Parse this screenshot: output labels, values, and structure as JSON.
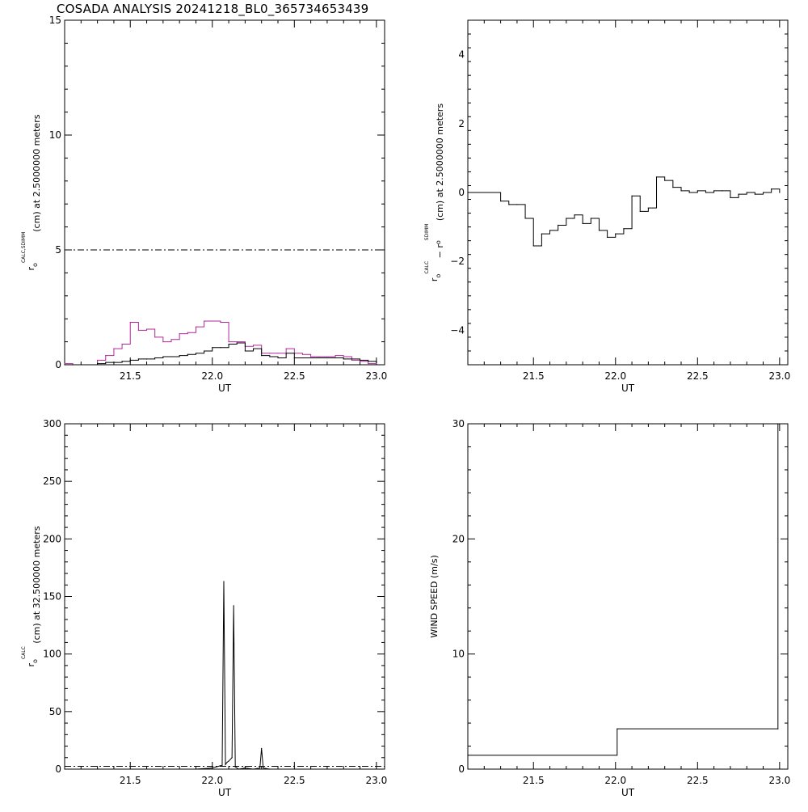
{
  "title": "COSADA ANALYSIS 20241218_BL0_365734653439",
  "colors": {
    "axis": "#000000",
    "series_black": "#000000",
    "series_magenta": "#b0279a"
  },
  "chart_data": [
    {
      "id": "top-left",
      "type": "line",
      "step": true,
      "xlabel": "UT",
      "ylabel_parts": {
        "pre": "r",
        "sub": "o",
        "sup": "CALC,SDIMM",
        "post": "(cm)  at  2.5000000 meters"
      },
      "xlim": [
        21.1,
        23.05
      ],
      "ylim": [
        0,
        15
      ],
      "xticks": [
        21.5,
        22.0,
        22.5,
        23.0
      ],
      "xtick_labels": [
        "21.5",
        "22.0",
        "22.5",
        "23.0"
      ],
      "yticks": [
        0,
        5,
        10,
        15
      ],
      "ytick_labels": [
        "0",
        "5",
        "10",
        "15"
      ],
      "reference_line": {
        "y": 5.0,
        "style": "dash-dot"
      },
      "series": [
        {
          "color": "#b0279a",
          "x": [
            21.1,
            21.15,
            21.3,
            21.35,
            21.4,
            21.45,
            21.5,
            21.55,
            21.6,
            21.65,
            21.7,
            21.75,
            21.8,
            21.85,
            21.9,
            21.95,
            22.0,
            22.05,
            22.1,
            22.15,
            22.2,
            22.25,
            22.3,
            22.35,
            22.4,
            22.45,
            22.5,
            22.55,
            22.6,
            22.65,
            22.7,
            22.75,
            22.8,
            22.85,
            22.9,
            22.95,
            23.0
          ],
          "y": [
            0.05,
            0.0,
            0.2,
            0.4,
            0.7,
            0.9,
            1.85,
            1.5,
            1.55,
            1.2,
            1.0,
            1.1,
            1.35,
            1.4,
            1.65,
            1.9,
            1.9,
            1.85,
            1.0,
            1.0,
            0.8,
            0.85,
            0.5,
            0.5,
            0.5,
            0.7,
            0.5,
            0.45,
            0.35,
            0.35,
            0.35,
            0.4,
            0.35,
            0.2,
            0.15,
            0.05,
            0.05
          ]
        },
        {
          "color": "#000000",
          "x": [
            21.1,
            21.3,
            21.35,
            21.4,
            21.45,
            21.5,
            21.55,
            21.6,
            21.65,
            21.7,
            21.75,
            21.8,
            21.85,
            21.9,
            21.95,
            22.0,
            22.05,
            22.1,
            22.15,
            22.2,
            22.25,
            22.3,
            22.35,
            22.4,
            22.45,
            22.5,
            22.55,
            22.6,
            22.65,
            22.7,
            22.75,
            22.8,
            22.85,
            22.9,
            22.95,
            23.0
          ],
          "y": [
            0.0,
            0.05,
            0.1,
            0.1,
            0.15,
            0.2,
            0.25,
            0.25,
            0.3,
            0.35,
            0.35,
            0.4,
            0.45,
            0.5,
            0.6,
            0.75,
            0.75,
            0.9,
            0.95,
            0.6,
            0.7,
            0.4,
            0.35,
            0.3,
            0.5,
            0.3,
            0.3,
            0.3,
            0.3,
            0.3,
            0.3,
            0.25,
            0.25,
            0.2,
            0.15,
            0.1
          ]
        }
      ]
    },
    {
      "id": "top-right",
      "type": "line",
      "step": true,
      "xlabel": "UT",
      "ylabel_parts": {
        "pre": "r",
        "sub": "o",
        "sup": "CALC",
        "mid": " − r",
        "sub2": "o",
        "sup2": "SDIMM",
        "post": " (cm)  at  2.5000000 meters"
      },
      "xlim": [
        21.1,
        23.05
      ],
      "ylim": [
        -5,
        5
      ],
      "xticks": [
        21.5,
        22.0,
        22.5,
        23.0
      ],
      "xtick_labels": [
        "21.5",
        "22.0",
        "22.5",
        "23.0"
      ],
      "yticks": [
        -4,
        -2,
        0,
        2,
        4
      ],
      "ytick_labels": [
        "−4",
        "−2",
        "0",
        "2",
        "4"
      ],
      "series": [
        {
          "color": "#000000",
          "x": [
            21.1,
            21.3,
            21.35,
            21.4,
            21.45,
            21.5,
            21.55,
            21.6,
            21.65,
            21.7,
            21.75,
            21.8,
            21.85,
            21.9,
            21.95,
            22.0,
            22.05,
            22.1,
            22.15,
            22.2,
            22.25,
            22.3,
            22.35,
            22.4,
            22.45,
            22.5,
            22.55,
            22.6,
            22.65,
            22.7,
            22.75,
            22.8,
            22.85,
            22.9,
            22.95,
            23.0
          ],
          "y": [
            0.0,
            -0.25,
            -0.35,
            -0.35,
            -0.75,
            -1.55,
            -1.2,
            -1.1,
            -0.95,
            -0.75,
            -0.65,
            -0.9,
            -0.75,
            -1.1,
            -1.3,
            -1.2,
            -1.05,
            -0.1,
            -0.55,
            -0.45,
            0.45,
            0.35,
            0.15,
            0.05,
            0.0,
            0.05,
            0.0,
            0.05,
            0.05,
            -0.15,
            -0.05,
            0.0,
            -0.05,
            0.0,
            0.1,
            0.0
          ]
        }
      ]
    },
    {
      "id": "bottom-left",
      "type": "line",
      "step": false,
      "xlabel": "UT",
      "ylabel_parts": {
        "pre": "r",
        "sub": "o",
        "sup": "CALC",
        "post": " (cm) at 32.500000 meters"
      },
      "xlim": [
        21.1,
        23.05
      ],
      "ylim": [
        0,
        300
      ],
      "xticks": [
        21.5,
        22.0,
        22.5,
        23.0
      ],
      "xtick_labels": [
        "21.5",
        "22.0",
        "22.5",
        "23.0"
      ],
      "yticks": [
        0,
        50,
        100,
        150,
        200,
        250,
        300
      ],
      "ytick_labels": [
        "0",
        "50",
        "100",
        "150",
        "200",
        "250",
        "300"
      ],
      "reference_line": {
        "y": 2.5,
        "style": "dash-dot"
      },
      "series": [
        {
          "color": "#000000",
          "x": [
            21.1,
            21.3,
            21.5,
            21.7,
            21.9,
            22.0,
            22.05,
            22.06,
            22.07,
            22.08,
            22.09,
            22.1,
            22.12,
            22.13,
            22.14,
            22.16,
            22.2,
            22.25,
            22.29,
            22.3,
            22.31,
            22.35,
            22.5,
            22.6,
            22.7,
            22.78
          ],
          "y": [
            0,
            0,
            0,
            0,
            0,
            1,
            3,
            3,
            163,
            4,
            6,
            7,
            10,
            142,
            2,
            0,
            1,
            0,
            1,
            18,
            1,
            0,
            0,
            0,
            0,
            0
          ]
        }
      ]
    },
    {
      "id": "bottom-right",
      "type": "line",
      "step": true,
      "xlabel": "UT",
      "ylabel_parts": {
        "pre": "WIND SPEED (m/s)"
      },
      "xlim": [
        21.1,
        23.05
      ],
      "ylim": [
        0,
        30
      ],
      "xticks": [
        21.5,
        22.0,
        22.5,
        23.0
      ],
      "xtick_labels": [
        "21.5",
        "22.0",
        "22.5",
        "23.0"
      ],
      "yticks": [
        0,
        10,
        20,
        30
      ],
      "ytick_labels": [
        "0",
        "10",
        "20",
        "30"
      ],
      "series": [
        {
          "color": "#000000",
          "x": [
            21.1,
            22.01,
            22.99,
            22.99
          ],
          "y": [
            1.2,
            3.5,
            3.5,
            30
          ]
        }
      ]
    }
  ]
}
